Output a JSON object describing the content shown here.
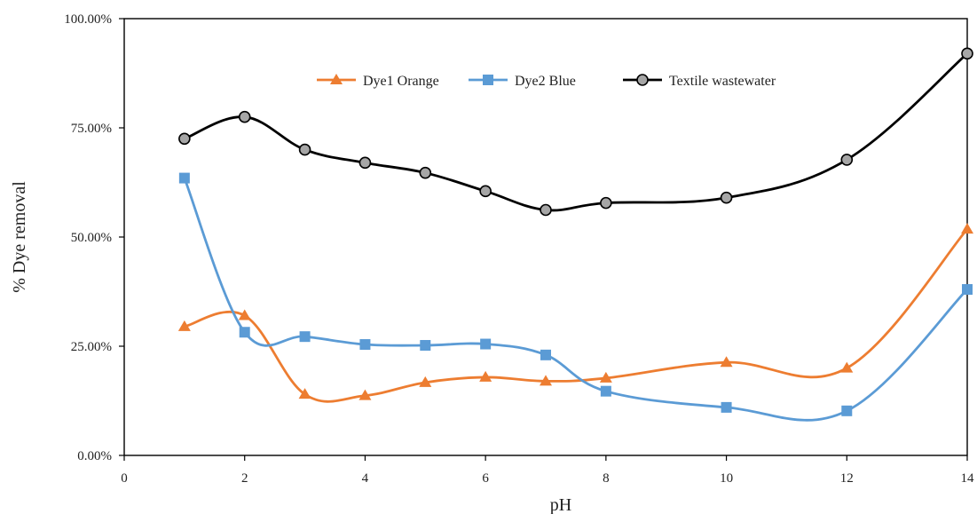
{
  "chart_data": {
    "type": "line",
    "title": "",
    "xlabel": "pH",
    "ylabel": "% Dye removal",
    "xlim": [
      0,
      14
    ],
    "ylim": [
      0,
      1
    ],
    "x_ticks": [
      0,
      2,
      4,
      6,
      8,
      10,
      12,
      14
    ],
    "x_tick_labels": [
      "0",
      "2",
      "4",
      "6",
      "8",
      "10",
      "12",
      "14"
    ],
    "y_ticks": [
      0,
      0.25,
      0.5,
      0.75,
      1
    ],
    "y_tick_labels": [
      "0.00%",
      "25.00%",
      "50.00%",
      "75.00%",
      "100.00%"
    ],
    "grid": false,
    "legend_position": "top",
    "x": [
      1,
      2,
      3,
      4,
      5,
      6,
      7,
      8,
      10,
      12,
      14
    ],
    "series": [
      {
        "name": "Dye1 Orange",
        "color": "#ED7D31",
        "marker": "triangle",
        "values": [
          0.295,
          0.32,
          0.14,
          0.137,
          0.167,
          0.179,
          0.17,
          0.177,
          0.213,
          0.2,
          0.518
        ]
      },
      {
        "name": "Dye2 Blue",
        "color": "#5B9BD5",
        "marker": "square",
        "values": [
          0.635,
          0.282,
          0.272,
          0.254,
          0.252,
          0.255,
          0.23,
          0.147,
          0.11,
          0.102,
          0.38
        ]
      },
      {
        "name": "Textile wastewater",
        "color": "#000000",
        "marker": "circle",
        "values": [
          0.725,
          0.775,
          0.7,
          0.67,
          0.647,
          0.605,
          0.562,
          0.578,
          0.59,
          0.677,
          0.92
        ]
      }
    ]
  }
}
